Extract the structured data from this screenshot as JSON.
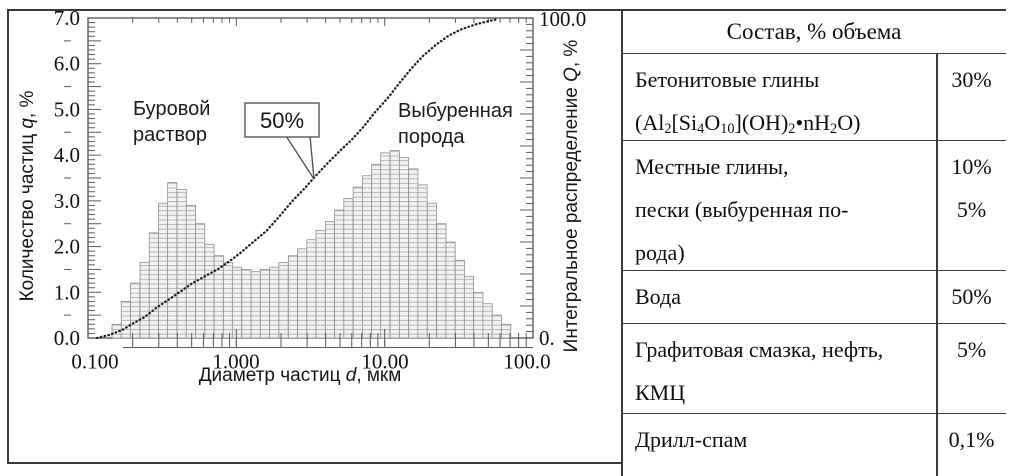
{
  "chart_data": {
    "type": "histogram_with_cumulative_line",
    "title": "",
    "x_axis": {
      "scale": "log",
      "min": 0.1,
      "max": 100,
      "tick_labels": [
        "0.100",
        "1.000",
        "10.00",
        "100.0"
      ],
      "label_parts": [
        "Диаметр частиц ",
        "d",
        ", мкм"
      ]
    },
    "y_left_axis": {
      "min": 0,
      "max": 7,
      "tick_labels": [
        "0.0",
        "1.0",
        "2.0",
        "3.0",
        "4.0",
        "5.0",
        "6.0",
        "7.0"
      ],
      "label_parts": [
        "Количество частиц ",
        "q",
        ", %"
      ]
    },
    "y_right_axis": {
      "min": 0,
      "max": 100,
      "tick_labels": [
        "100.0",
        "0."
      ],
      "label_parts": [
        "Интегральное распределение ",
        "Q",
        ", %"
      ]
    },
    "bars": {
      "bin_width_decades": 0.0625,
      "d": [
        0.156,
        0.18,
        0.208,
        0.241,
        0.278,
        0.321,
        0.37,
        0.428,
        0.494,
        0.57,
        0.659,
        0.761,
        0.879,
        1.01,
        1.17,
        1.35,
        1.56,
        1.8,
        2.08,
        2.41,
        2.78,
        3.21,
        3.7,
        4.28,
        4.94,
        5.7,
        6.59,
        7.61,
        8.78,
        10.1,
        11.7,
        13.5,
        15.6,
        18.0,
        20.8,
        24.1,
        27.8,
        32.1,
        37.0,
        42.8,
        49.4,
        57.0,
        65.9
      ],
      "q": [
        0.3,
        0.8,
        1.2,
        1.65,
        2.3,
        2.95,
        3.4,
        3.25,
        2.9,
        2.5,
        2.05,
        1.8,
        1.65,
        1.55,
        1.5,
        1.45,
        1.5,
        1.55,
        1.65,
        1.8,
        1.95,
        2.15,
        2.35,
        2.55,
        2.8,
        3.05,
        3.3,
        3.55,
        3.8,
        4.05,
        4.1,
        3.95,
        3.7,
        3.35,
        2.95,
        2.5,
        2.1,
        1.7,
        1.35,
        1.0,
        0.75,
        0.5,
        0.3
      ]
    },
    "cumulative": {
      "points": [
        [
          0.115,
          0
        ],
        [
          0.14,
          1
        ],
        [
          0.17,
          2.5
        ],
        [
          0.2,
          4.5
        ],
        [
          0.24,
          6.5
        ],
        [
          0.29,
          9.5
        ],
        [
          0.35,
          12
        ],
        [
          0.42,
          14.5
        ],
        [
          0.5,
          17
        ],
        [
          0.6,
          19
        ],
        [
          0.75,
          21.5
        ],
        [
          0.9,
          24
        ],
        [
          1.06,
          26.5
        ],
        [
          1.3,
          30
        ],
        [
          1.6,
          33.5
        ],
        [
          1.95,
          38
        ],
        [
          2.35,
          42.5
        ],
        [
          2.85,
          46.5
        ],
        [
          3.4,
          50.5
        ],
        [
          4.1,
          54.5
        ],
        [
          5.0,
          58.5
        ],
        [
          6.0,
          62
        ],
        [
          7.2,
          66
        ],
        [
          8.6,
          70.5
        ],
        [
          10.5,
          75
        ],
        [
          12.5,
          79.5
        ],
        [
          15.0,
          84
        ],
        [
          18.0,
          88
        ],
        [
          22.0,
          91.5
        ],
        [
          27.0,
          94.5
        ],
        [
          33.0,
          96.5
        ],
        [
          41.0,
          98
        ],
        [
          50.0,
          99
        ],
        [
          58.0,
          99.7
        ]
      ]
    },
    "annotations": {
      "left_lines": [
        "Буровой",
        "раствор"
      ],
      "right_lines": [
        "Выбуренная",
        "порода"
      ],
      "callout_label": "50%",
      "callout_points_at": {
        "d": 3.35,
        "Q": 50
      }
    }
  },
  "table": {
    "header": "Состав, % объема",
    "rows": [
      {
        "label_lines": [
          "Бетонитовые глины",
          [
            {
              "t": "(Al"
            },
            {
              "t": "2",
              "sub": true
            },
            {
              "t": "[Si"
            },
            {
              "t": "4",
              "sub": true
            },
            {
              "t": "O"
            },
            {
              "t": "10",
              "sub": true
            },
            {
              "t": "](OH)"
            },
            {
              "t": "2",
              "sub": true
            },
            {
              "t": "•nH"
            },
            {
              "t": "2",
              "sub": true
            },
            {
              "t": "O)"
            }
          ]
        ],
        "value_lines": [
          "30%"
        ]
      },
      {
        "label_lines": [
          "Местные глины,",
          "пески (выбуренная по-",
          "рода)"
        ],
        "value_lines": [
          "10%",
          "5%"
        ]
      },
      {
        "label_lines": [
          "Вода"
        ],
        "value_lines": [
          "50%"
        ]
      },
      {
        "label_lines": [
          "Графитовая смазка, нефть,",
          "КМЦ"
        ],
        "value_lines": [
          "5%"
        ]
      },
      {
        "label_lines": [
          "Дрилл-спам"
        ],
        "value_lines": [
          "0,1%"
        ]
      }
    ]
  }
}
